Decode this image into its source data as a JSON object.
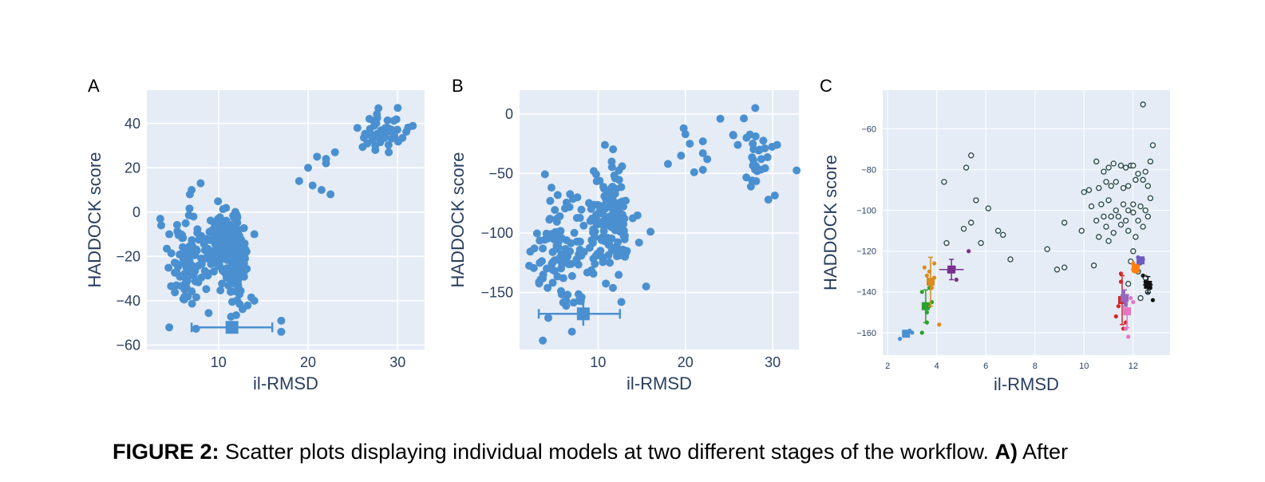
{
  "panel_labels": [
    "A",
    "B",
    "C"
  ],
  "caption": {
    "figure_label": "FIGURE 2:",
    "text": " Scatter plots displaying individual models at two different stages of the workflow. ",
    "part_a_label": "A)",
    "part_a_text": " After"
  },
  "colors": {
    "plot_bg": "#e5ecf6",
    "grid": "#ffffff",
    "point": "#4a90d0",
    "axis_text": "#2a3f5f",
    "open_marker": "#2f4f4f"
  },
  "chart_data": [
    {
      "type": "scatter",
      "panel": "A",
      "xlabel": "il-RMSD",
      "ylabel": "HADDOCK score",
      "xlim": [
        2,
        33
      ],
      "ylim": [
        -62,
        55
      ],
      "xticks": [
        10,
        20,
        30
      ],
      "yticks": [
        -60,
        -40,
        -20,
        0,
        20,
        40
      ],
      "grid": true,
      "clusters": [
        {
          "cx": 6.5,
          "cy": -25,
          "sx": 1.0,
          "sy": 10,
          "n": 90
        },
        {
          "cx": 10.5,
          "cy": -15,
          "sx": 0.9,
          "sy": 7,
          "n": 160
        },
        {
          "cx": 12.0,
          "cy": -22,
          "sx": 0.6,
          "sy": 11,
          "n": 130
        },
        {
          "cx": 28.5,
          "cy": 37,
          "sx": 1.3,
          "sy": 4,
          "n": 45
        }
      ],
      "points": [
        [
          3.5,
          -3
        ],
        [
          3.6,
          -6
        ],
        [
          4.5,
          -10
        ],
        [
          4.5,
          -52
        ],
        [
          6.8,
          8
        ],
        [
          7,
          10
        ],
        [
          7.2,
          -2
        ],
        [
          8,
          13
        ],
        [
          20,
          20
        ],
        [
          19,
          14
        ],
        [
          21,
          25
        ],
        [
          20.5,
          12
        ],
        [
          22,
          22
        ],
        [
          21.5,
          10
        ],
        [
          22.5,
          8
        ],
        [
          23,
          27
        ],
        [
          22,
          24
        ],
        [
          17,
          -49
        ],
        [
          17,
          -54
        ],
        [
          14,
          -40
        ],
        [
          14,
          -10
        ],
        [
          25.5,
          38
        ],
        [
          30,
          47
        ],
        [
          29,
          27
        ],
        [
          27.5,
          28
        ]
      ],
      "summary": {
        "x": 11.5,
        "y": -52,
        "xerr_low": 7,
        "xerr_high": 16,
        "yerr": 0
      }
    },
    {
      "type": "scatter",
      "panel": "B",
      "xlabel": "il-RMSD",
      "ylabel": "HADDOCK score",
      "xlim": [
        1,
        33
      ],
      "ylim": [
        -198,
        20
      ],
      "xticks": [
        10,
        20,
        30
      ],
      "yticks": [
        -150,
        -100,
        -50,
        0
      ],
      "grid": true,
      "clusters": [
        {
          "cx": 5.5,
          "cy": -115,
          "sx": 1.8,
          "sy": 22,
          "n": 110
        },
        {
          "cx": 11.5,
          "cy": -90,
          "sx": 1.2,
          "sy": 20,
          "n": 140
        },
        {
          "cx": 28.5,
          "cy": -40,
          "sx": 1.5,
          "sy": 13,
          "n": 25
        }
      ],
      "points": [
        [
          7,
          -183
        ],
        [
          6.5,
          -152
        ],
        [
          9.5,
          -48
        ],
        [
          16,
          -99
        ],
        [
          15.5,
          -145
        ],
        [
          18,
          -42
        ],
        [
          19.5,
          -35
        ],
        [
          19.8,
          -12
        ],
        [
          20,
          -17
        ],
        [
          20.5,
          -25
        ],
        [
          21,
          -49
        ],
        [
          22,
          -47
        ],
        [
          22,
          -33
        ],
        [
          22.5,
          -38
        ],
        [
          22,
          -23
        ],
        [
          24,
          -4
        ],
        [
          25.5,
          -18
        ],
        [
          26,
          -26
        ],
        [
          27.5,
          -61
        ],
        [
          28,
          5
        ],
        [
          29.5,
          -72
        ],
        [
          30.5,
          -26
        ],
        [
          27,
          -20
        ],
        [
          28.5,
          -30
        ]
      ],
      "summary": {
        "x": 8.3,
        "y": -168,
        "xerr_low": 3.2,
        "xerr_high": 12.5,
        "yerr": 10
      }
    },
    {
      "type": "scatter",
      "panel": "C",
      "xlabel": "il-RMSD",
      "ylabel": "HADDOCK score",
      "xlim": [
        1.8,
        13.5
      ],
      "ylim": [
        -171,
        -41
      ],
      "xticks": [
        2,
        4,
        6,
        8,
        10,
        12
      ],
      "yticks": [
        -160,
        -140,
        -120,
        -100,
        -80,
        -60
      ],
      "grid": true,
      "open_points": [
        [
          12.4,
          -48
        ],
        [
          12.8,
          -68
        ],
        [
          5.4,
          -73
        ],
        [
          5.2,
          -79
        ],
        [
          4.3,
          -86
        ],
        [
          5.6,
          -95
        ],
        [
          6.1,
          -99
        ],
        [
          6.5,
          -110
        ],
        [
          6.7,
          -112
        ],
        [
          5.4,
          -106
        ],
        [
          5.1,
          -109
        ],
        [
          5.8,
          -116
        ],
        [
          7.0,
          -124
        ],
        [
          4.4,
          -116
        ],
        [
          8.5,
          -119
        ],
        [
          9.2,
          -106
        ],
        [
          9.2,
          -128
        ],
        [
          8.9,
          -129
        ],
        [
          9.9,
          -110
        ],
        [
          10.4,
          -127
        ],
        [
          10.5,
          -76
        ],
        [
          10.8,
          -81
        ],
        [
          11.0,
          -79
        ],
        [
          11.2,
          -77
        ],
        [
          11.5,
          -78
        ],
        [
          11.7,
          -79
        ],
        [
          11.9,
          -78
        ],
        [
          12.0,
          -78
        ],
        [
          12.2,
          -82
        ],
        [
          12.5,
          -81
        ],
        [
          12.7,
          -76
        ],
        [
          12.4,
          -85
        ],
        [
          10.2,
          -90
        ],
        [
          10.0,
          -91
        ],
        [
          10.6,
          -89
        ],
        [
          10.9,
          -86
        ],
        [
          11.1,
          -88
        ],
        [
          11.3,
          -86
        ],
        [
          11.6,
          -89
        ],
        [
          11.8,
          -88
        ],
        [
          12.1,
          -85
        ],
        [
          12.6,
          -88
        ],
        [
          10.3,
          -98
        ],
        [
          10.7,
          -97
        ],
        [
          11.0,
          -95
        ],
        [
          11.3,
          -100
        ],
        [
          11.6,
          -97
        ],
        [
          11.8,
          -100
        ],
        [
          12.0,
          -97
        ],
        [
          12.3,
          -98
        ],
        [
          12.5,
          -100
        ],
        [
          12.7,
          -94
        ],
        [
          10.5,
          -105
        ],
        [
          10.8,
          -103
        ],
        [
          11.1,
          -103
        ],
        [
          11.4,
          -103
        ],
        [
          11.7,
          -105
        ],
        [
          12.0,
          -101
        ],
        [
          12.2,
          -105
        ],
        [
          12.6,
          -103
        ],
        [
          10.9,
          -108
        ],
        [
          11.2,
          -111
        ],
        [
          11.5,
          -107
        ],
        [
          11.8,
          -110
        ],
        [
          12.1,
          -113
        ],
        [
          12.4,
          -108
        ],
        [
          10.6,
          -113
        ],
        [
          11.0,
          -115
        ],
        [
          12.0,
          -120
        ],
        [
          11.9,
          -125
        ],
        [
          12.2,
          -130
        ],
        [
          12.5,
          -133
        ],
        [
          12.6,
          -140
        ],
        [
          12.3,
          -143
        ],
        [
          11.8,
          -136
        ]
      ],
      "groups": [
        {
          "color": "#4a90d0",
          "x": 2.75,
          "y": -160.5,
          "xerr": 0.1,
          "yerr": 1,
          "pts": [
            [
              2.5,
              -163
            ],
            [
              2.7,
              -160
            ],
            [
              2.8,
              -161
            ],
            [
              2.9,
              -159
            ],
            [
              3.0,
              -160
            ]
          ]
        },
        {
          "color": "#2ca02c",
          "x": 3.55,
          "y": -147,
          "xerr": 0.15,
          "yerr": 8,
          "pts": [
            [
              3.4,
              -160
            ],
            [
              3.6,
              -155
            ],
            [
              3.7,
              -147
            ],
            [
              3.5,
              -146
            ],
            [
              3.8,
              -145
            ],
            [
              3.6,
              -150
            ],
            [
              3.7,
              -138
            ],
            [
              3.4,
              -140
            ]
          ]
        },
        {
          "color": "#d98b1c",
          "x": 3.75,
          "y": -135,
          "xerr": 0.15,
          "yerr": 12,
          "pts": [
            [
              3.5,
              -128
            ],
            [
              3.7,
              -130
            ],
            [
              3.9,
              -126
            ],
            [
              3.6,
              -132
            ],
            [
              4.1,
              -156
            ],
            [
              3.8,
              -138
            ],
            [
              3.9,
              -133
            ]
          ]
        },
        {
          "color": "#7b2f8e",
          "x": 4.6,
          "y": -129,
          "xerr": 0.5,
          "yerr": 5,
          "pts": [
            [
              4.5,
              -130
            ],
            [
              4.8,
              -134
            ],
            [
              5.3,
              -120
            ],
            [
              4.7,
              -128
            ]
          ]
        },
        {
          "color": "#d62728",
          "x": 11.55,
          "y": -144,
          "xerr": 0.1,
          "yerr": 12,
          "pts": [
            [
              11.5,
              -131
            ],
            [
              11.4,
              -147
            ],
            [
              11.6,
              -158
            ],
            [
              11.3,
              -152
            ],
            [
              11.7,
              -155
            ],
            [
              11.5,
              -135
            ]
          ]
        },
        {
          "color": "#e377c2",
          "x": 11.75,
          "y": -149.5,
          "xerr": 0.15,
          "yerr": 8,
          "pts": [
            [
              11.7,
              -158
            ],
            [
              11.8,
              -162
            ],
            [
              11.9,
              -143
            ],
            [
              12.0,
              -145
            ]
          ]
        },
        {
          "color": "#9467bd",
          "x": 11.65,
          "y": -143,
          "xerr": 0.1,
          "yerr": 4,
          "pts": [
            [
              11.6,
              -140
            ],
            [
              11.7,
              -146
            ]
          ]
        },
        {
          "color": "#ff7f0e",
          "x": 12.1,
          "y": -128.5,
          "xerr": 0.1,
          "yerr": 2,
          "pts": [
            [
              12.0,
              -126
            ],
            [
              12.2,
              -127
            ],
            [
              12.1,
              -130
            ],
            [
              12.0,
              -129
            ]
          ]
        },
        {
          "color": "#6f5cc2",
          "x": 12.3,
          "y": -124.5,
          "xerr": 0.1,
          "yerr": 1.5,
          "pts": [
            [
              12.2,
              -123
            ],
            [
              12.4,
              -124
            ],
            [
              12.3,
              -126
            ]
          ]
        },
        {
          "color": "#111111",
          "x": 12.6,
          "y": -136.5,
          "xerr": 0.2,
          "yerr": 4,
          "pts": [
            [
              12.8,
              -144
            ],
            [
              12.4,
              -132
            ],
            [
              12.7,
              -138
            ],
            [
              12.5,
              -135
            ]
          ]
        }
      ]
    }
  ]
}
